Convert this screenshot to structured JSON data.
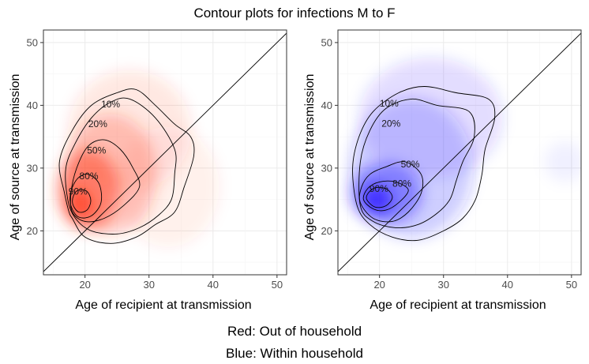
{
  "figure": {
    "title": "Contour plots for infections M to F",
    "caption_lines": [
      "Red: Out of household",
      "Blue: Within household"
    ]
  },
  "chart_data": [
    {
      "type": "contour",
      "panel": "left",
      "xlabel": "Age of recipient at transmission",
      "ylabel": "Age of source at transmission",
      "xlim": [
        13.5,
        51.5
      ],
      "ylim": [
        13,
        52
      ],
      "xticks": [
        20,
        30,
        40,
        50
      ],
      "yticks": [
        20,
        30,
        40,
        50
      ],
      "grid": true,
      "identity_line": true,
      "fill_color": "#ff3b1f",
      "density_blobs": [
        {
          "x": 19.2,
          "y": 24.2,
          "sx": 1.2,
          "sy": 1.6,
          "w": 1.0
        },
        {
          "x": 20.5,
          "y": 26.5,
          "sx": 3.0,
          "sy": 4.0,
          "w": 0.7
        },
        {
          "x": 24.0,
          "y": 29.0,
          "sx": 4.5,
          "sy": 6.0,
          "w": 0.35
        },
        {
          "x": 27.0,
          "y": 36.0,
          "sx": 6.0,
          "sy": 6.0,
          "w": 0.15
        },
        {
          "x": 33.0,
          "y": 27.0,
          "sx": 5.0,
          "sy": 6.0,
          "w": 0.1
        }
      ],
      "contours": [
        {
          "label": "10%",
          "label_pos": [
            24.0,
            40.2
          ],
          "points": [
            [
              18,
              22
            ],
            [
              20,
              19
            ],
            [
              24,
              18
            ],
            [
              28,
              19
            ],
            [
              31,
              21
            ],
            [
              34,
              23
            ],
            [
              35.5,
              27
            ],
            [
              37,
              32
            ],
            [
              36.5,
              35
            ],
            [
              34,
              37
            ],
            [
              31,
              40
            ],
            [
              28,
              42.5
            ],
            [
              25,
              42
            ],
            [
              21,
              40
            ],
            [
              18,
              36
            ],
            [
              16,
              31
            ],
            [
              16.8,
              26
            ],
            [
              17.5,
              23
            ]
          ]
        },
        {
          "label": "20%",
          "label_pos": [
            22.0,
            37.0
          ],
          "points": [
            [
              18.5,
              22
            ],
            [
              21,
              20
            ],
            [
              25,
              19.5
            ],
            [
              28.5,
              20.5
            ],
            [
              31.5,
              22.5
            ],
            [
              33.5,
              25
            ],
            [
              34,
              29
            ],
            [
              34,
              33
            ],
            [
              31,
              38
            ],
            [
              27,
              41
            ],
            [
              24,
              40.5
            ],
            [
              21,
              38
            ],
            [
              18.5,
              34
            ],
            [
              17,
              30
            ],
            [
              17.3,
              25
            ]
          ]
        },
        {
          "label": "50%",
          "label_pos": [
            21.8,
            32.8
          ],
          "points": [
            [
              18,
              23
            ],
            [
              20,
              21.5
            ],
            [
              23,
              22
            ],
            [
              26,
              24
            ],
            [
              28.5,
              27
            ],
            [
              27.5,
              30
            ],
            [
              25.5,
              33
            ],
            [
              23,
              34.5
            ],
            [
              20.5,
              33.5
            ],
            [
              18.7,
              30
            ],
            [
              17.8,
              26
            ]
          ]
        },
        {
          "label": "80%",
          "label_pos": [
            20.6,
            28.7
          ],
          "points": [
            [
              17.8,
              24
            ],
            [
              19,
              22.2
            ],
            [
              21,
              22.4
            ],
            [
              22.5,
              24.5
            ],
            [
              22.2,
              27.5
            ],
            [
              20.5,
              29
            ],
            [
              18.9,
              28.4
            ],
            [
              17.8,
              26.3
            ]
          ]
        },
        {
          "label": "90%",
          "label_pos": [
            18.9,
            26.3
          ],
          "points": [
            [
              18.1,
              24.2
            ],
            [
              19,
              23
            ],
            [
              20.3,
              23.3
            ],
            [
              20.9,
              24.8
            ],
            [
              20.3,
              26.3
            ],
            [
              19,
              26.5
            ],
            [
              18.2,
              25.6
            ]
          ]
        }
      ]
    },
    {
      "type": "contour",
      "panel": "right",
      "xlabel": "Age of recipient at transmission",
      "ylabel": "Age of source at transmission",
      "xlim": [
        13.5,
        51.5
      ],
      "ylim": [
        13,
        52
      ],
      "xticks": [
        20,
        30,
        40,
        50
      ],
      "yticks": [
        20,
        30,
        40,
        50
      ],
      "grid": true,
      "identity_line": true,
      "fill_color": "#2a1aff",
      "density_blobs": [
        {
          "x": 19.5,
          "y": 25.0,
          "sx": 1.5,
          "sy": 1.4,
          "w": 1.0
        },
        {
          "x": 21.0,
          "y": 26.0,
          "sx": 3.5,
          "sy": 3.0,
          "w": 0.6
        },
        {
          "x": 25.0,
          "y": 30.0,
          "sx": 6.0,
          "sy": 7.0,
          "w": 0.3
        },
        {
          "x": 28.0,
          "y": 38.0,
          "sx": 7.0,
          "sy": 6.0,
          "w": 0.18
        },
        {
          "x": 49.0,
          "y": 31.0,
          "sx": 2.0,
          "sy": 2.0,
          "w": 0.08
        }
      ],
      "contours": [
        {
          "label": "10%",
          "label_pos": [
            21.5,
            40.3
          ],
          "points": [
            [
              16.5,
              24
            ],
            [
              18.5,
              21
            ],
            [
              22,
              19
            ],
            [
              26,
              18.5
            ],
            [
              30,
              20
            ],
            [
              33,
              22
            ],
            [
              35,
              25
            ],
            [
              36,
              29
            ],
            [
              36.5,
              33
            ],
            [
              38,
              38
            ],
            [
              37,
              41
            ],
            [
              32,
              42
            ],
            [
              27,
              43
            ],
            [
              23,
              42
            ],
            [
              19,
              39
            ],
            [
              16.8,
              35
            ],
            [
              15.8,
              30
            ]
          ]
        },
        {
          "label": "20%",
          "label_pos": [
            21.8,
            37.1
          ],
          "points": [
            [
              17,
              24
            ],
            [
              19,
              21.5
            ],
            [
              22.5,
              20.5
            ],
            [
              26,
              21
            ],
            [
              29,
              22.8
            ],
            [
              31,
              25
            ],
            [
              32,
              28
            ],
            [
              33,
              31
            ],
            [
              34.8,
              35
            ],
            [
              34,
              39
            ],
            [
              29,
              40
            ],
            [
              25,
              41
            ],
            [
              21,
              39.5
            ],
            [
              18.5,
              36
            ],
            [
              17,
              31
            ]
          ]
        },
        {
          "label": "50%",
          "label_pos": [
            24.8,
            30.6
          ],
          "points": [
            [
              17,
              24.5
            ],
            [
              19,
              22
            ],
            [
              22,
              21.5
            ],
            [
              24.5,
              23
            ],
            [
              26.5,
              26
            ],
            [
              26.5,
              29
            ],
            [
              24,
              31
            ],
            [
              21,
              30.2
            ],
            [
              18.5,
              29
            ],
            [
              17.2,
              27
            ]
          ]
        },
        {
          "label": "80%",
          "label_pos": [
            23.5,
            27.5
          ],
          "points": [
            [
              17.5,
              25
            ],
            [
              19,
              23.5
            ],
            [
              21,
              23.3
            ],
            [
              23,
              24.5
            ],
            [
              24.5,
              26.5
            ],
            [
              22.5,
              27.8
            ],
            [
              20,
              27.8
            ],
            [
              18.2,
              26.8
            ]
          ]
        },
        {
          "label": "90%",
          "label_pos": [
            19.9,
            26.7
          ],
          "points": [
            [
              18,
              25
            ],
            [
              19.3,
              23.8
            ],
            [
              21,
              24
            ],
            [
              22,
              25.3
            ],
            [
              21.2,
              26.6
            ],
            [
              19.5,
              26.9
            ],
            [
              18.3,
              26.1
            ]
          ]
        }
      ]
    }
  ]
}
